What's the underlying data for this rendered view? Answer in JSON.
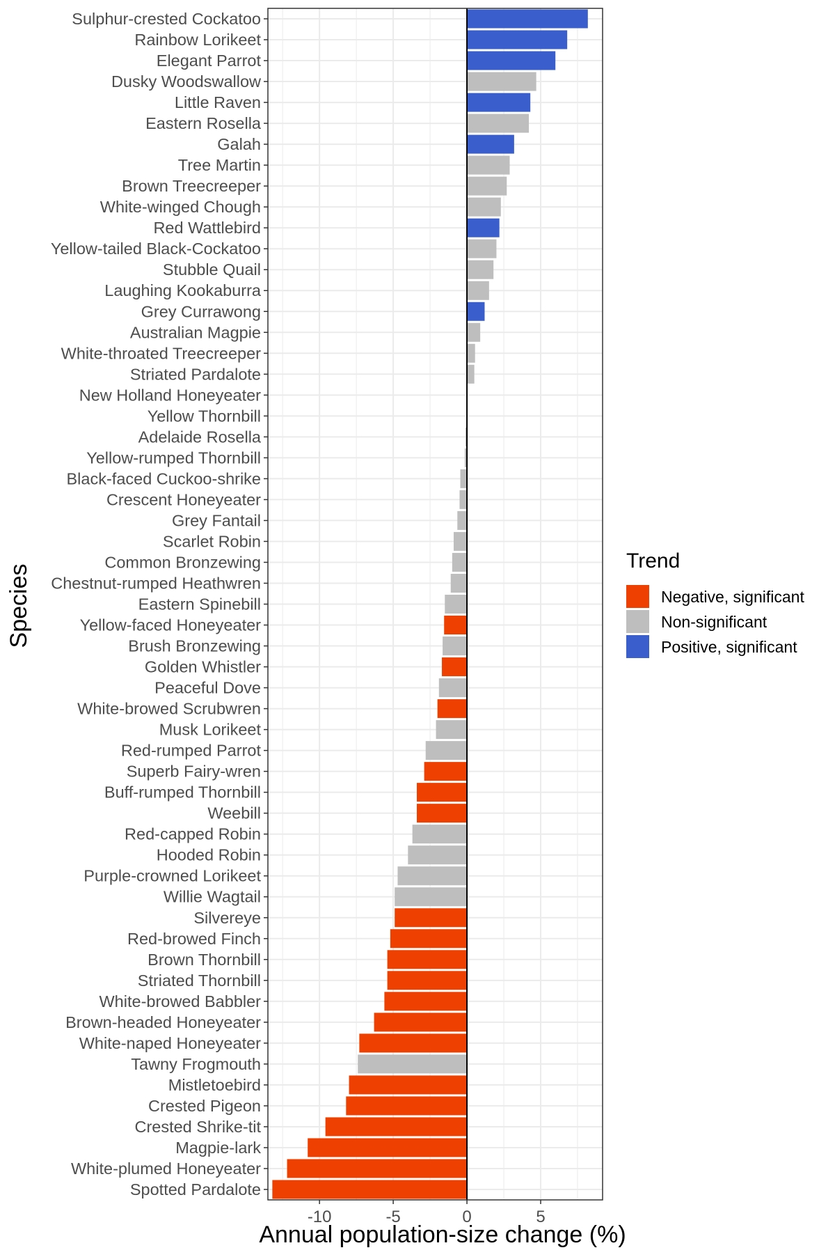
{
  "chart_data": {
    "type": "bar",
    "orientation": "horizontal",
    "xlabel": "Annual population-size change (%)",
    "ylabel": "Species",
    "xlim": [
      -13.5,
      9.2
    ],
    "xticks": [
      -10,
      -5,
      0,
      5
    ],
    "grid": true,
    "legend_placement": "right",
    "legend": {
      "title": "Trend",
      "entries": [
        {
          "key": "neg",
          "label": "Negative, significant",
          "color": "#EE4000"
        },
        {
          "key": "ns",
          "label": "Non-significant",
          "color": "#BEBEBE"
        },
        {
          "key": "pos",
          "label": "Positive, significant",
          "color": "#3A5FCD"
        }
      ]
    },
    "categories": [
      "Sulphur-crested Cockatoo",
      "Rainbow Lorikeet",
      "Elegant Parrot",
      "Dusky Woodswallow",
      "Little Raven",
      "Eastern Rosella",
      "Galah",
      "Tree Martin",
      "Brown Treecreeper",
      "White-winged Chough",
      "Red Wattlebird",
      "Yellow-tailed Black-Cockatoo",
      "Stubble Quail",
      "Laughing Kookaburra",
      "Grey Currawong",
      "Australian Magpie",
      "White-throated Treecreeper",
      "Striated Pardalote",
      "New Holland Honeyeater",
      "Yellow Thornbill",
      "Adelaide Rosella",
      "Yellow-rumped Thornbill",
      "Black-faced Cuckoo-shrike",
      "Crescent Honeyeater",
      "Grey Fantail",
      "Scarlet Robin",
      "Common Bronzewing",
      "Chestnut-rumped Heathwren",
      "Eastern Spinebill",
      "Yellow-faced Honeyeater",
      "Brush Bronzewing",
      "Golden Whistler",
      "Peaceful Dove",
      "White-browed Scrubwren",
      "Musk Lorikeet",
      "Red-rumped Parrot",
      "Superb Fairy-wren",
      "Buff-rumped Thornbill",
      "Weebill",
      "Red-capped Robin",
      "Hooded Robin",
      "Purple-crowned Lorikeet",
      "Willie Wagtail",
      "Silvereye",
      "Red-browed Finch",
      "Brown Thornbill",
      "Striated Thornbill",
      "White-browed Babbler",
      "Brown-headed Honeyeater",
      "White-naped Honeyeater",
      "Tawny Frogmouth",
      "Mistletoebird",
      "Crested Pigeon",
      "Crested Shrike-tit",
      "Magpie-lark",
      "White-plumed Honeyeater",
      "Spotted Pardalote"
    ],
    "values": [
      8.2,
      6.8,
      6.0,
      4.7,
      4.3,
      4.2,
      3.2,
      2.9,
      2.7,
      2.3,
      2.2,
      2.0,
      1.8,
      1.5,
      1.2,
      0.9,
      0.55,
      0.5,
      0.0,
      0.0,
      -0.1,
      -0.15,
      -0.45,
      -0.5,
      -0.65,
      -0.9,
      -1.0,
      -1.1,
      -1.5,
      -1.55,
      -1.65,
      -1.7,
      -1.9,
      -2.0,
      -2.1,
      -2.8,
      -2.9,
      -3.4,
      -3.4,
      -3.7,
      -4.0,
      -4.7,
      -4.9,
      -4.9,
      -5.2,
      -5.4,
      -5.4,
      -5.6,
      -6.3,
      -7.3,
      -7.4,
      -8.0,
      -8.2,
      -9.6,
      -10.8,
      -12.2,
      -13.2
    ],
    "trend": [
      "pos",
      "pos",
      "pos",
      "ns",
      "pos",
      "ns",
      "pos",
      "ns",
      "ns",
      "ns",
      "pos",
      "ns",
      "ns",
      "ns",
      "pos",
      "ns",
      "ns",
      "ns",
      "ns",
      "ns",
      "ns",
      "ns",
      "ns",
      "ns",
      "ns",
      "ns",
      "ns",
      "ns",
      "ns",
      "neg",
      "ns",
      "neg",
      "ns",
      "neg",
      "ns",
      "ns",
      "neg",
      "neg",
      "neg",
      "ns",
      "ns",
      "ns",
      "ns",
      "neg",
      "neg",
      "neg",
      "neg",
      "neg",
      "neg",
      "neg",
      "ns",
      "neg",
      "neg",
      "neg",
      "neg",
      "neg",
      "neg"
    ]
  }
}
